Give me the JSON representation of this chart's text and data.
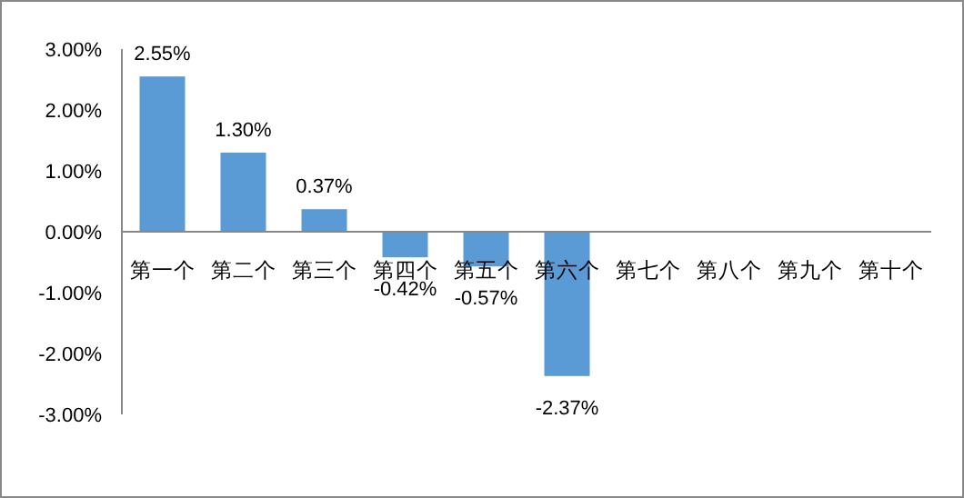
{
  "chart_data": {
    "type": "bar",
    "categories": [
      "第一个",
      "第二个",
      "第三个",
      "第四个",
      "第五个",
      "第六个",
      "第七个",
      "第八个",
      "第九个",
      "第十个"
    ],
    "values": [
      2.55,
      1.3,
      0.37,
      -0.42,
      -0.57,
      -2.37,
      null,
      null,
      null,
      null
    ],
    "value_labels": [
      "2.55%",
      "1.30%",
      "0.37%",
      "-0.42%",
      "-0.57%",
      "-2.37%",
      null,
      null,
      null,
      null
    ],
    "color": "#5b9bd5",
    "ylim": [
      -3,
      3
    ],
    "yticks": [
      {
        "value": -3,
        "label": "-3.00%"
      },
      {
        "value": -2,
        "label": "-2.00%"
      },
      {
        "value": -1,
        "label": "-1.00%"
      },
      {
        "value": 0,
        "label": "0.00%"
      },
      {
        "value": 1,
        "label": "1.00%"
      },
      {
        "value": 2,
        "label": "2.00%"
      },
      {
        "value": 3,
        "label": "3.00%"
      }
    ],
    "grid": false
  }
}
